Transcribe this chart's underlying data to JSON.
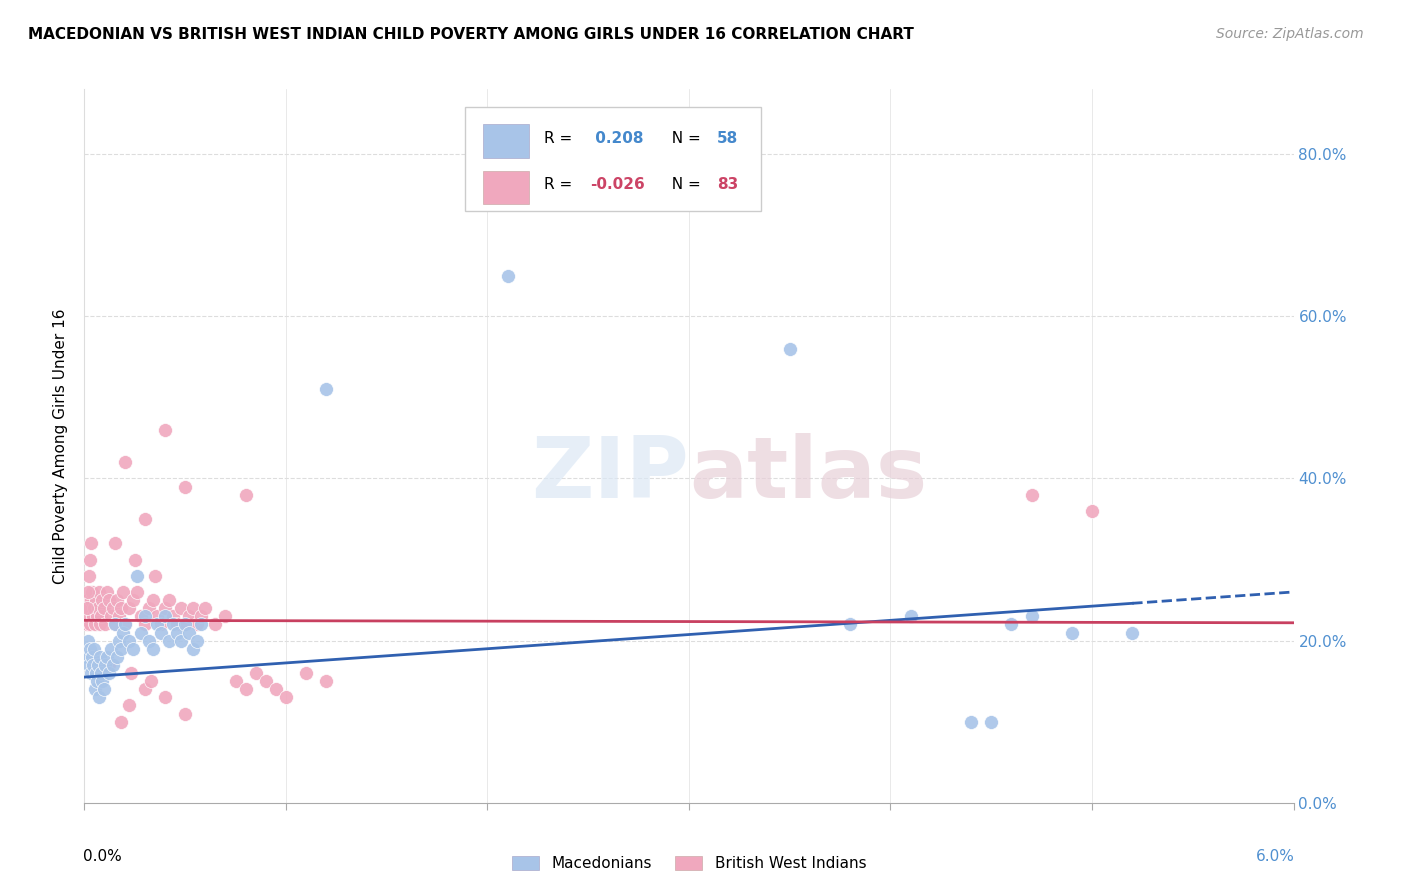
{
  "title": "MACEDONIAN VS BRITISH WEST INDIAN CHILD POVERTY AMONG GIRLS UNDER 16 CORRELATION CHART",
  "source": "Source: ZipAtlas.com",
  "ylabel": "Child Poverty Among Girls Under 16",
  "color_blue": "#a8c4e8",
  "color_pink": "#f0a8be",
  "color_blue_line": "#3060b0",
  "color_pink_line": "#c84060",
  "color_right_axis": "#5090d0",
  "xlim": [
    0.0,
    0.06
  ],
  "ylim": [
    0.0,
    0.88
  ],
  "mac_x": [
    0.00012,
    0.00018,
    0.00022,
    0.00028,
    0.00035,
    0.0004,
    0.00045,
    0.0005,
    0.00055,
    0.0006,
    0.00065,
    0.0007,
    0.00075,
    0.0008,
    0.00085,
    0.0009,
    0.00095,
    0.001,
    0.0011,
    0.0012,
    0.0013,
    0.0014,
    0.0015,
    0.0016,
    0.0017,
    0.0018,
    0.0019,
    0.002,
    0.0022,
    0.0024,
    0.0026,
    0.0028,
    0.003,
    0.0032,
    0.0034,
    0.0036,
    0.0038,
    0.004,
    0.0042,
    0.0044,
    0.0046,
    0.0048,
    0.005,
    0.0052,
    0.0054,
    0.0056,
    0.0058,
    0.021,
    0.035,
    0.012,
    0.045,
    0.049,
    0.052,
    0.047,
    0.038,
    0.041,
    0.044,
    0.046
  ],
  "mac_y": [
    0.18,
    0.2,
    0.17,
    0.19,
    0.16,
    0.18,
    0.17,
    0.19,
    0.14,
    0.16,
    0.15,
    0.17,
    0.13,
    0.18,
    0.16,
    0.15,
    0.14,
    0.17,
    0.18,
    0.16,
    0.19,
    0.17,
    0.22,
    0.18,
    0.2,
    0.19,
    0.21,
    0.22,
    0.2,
    0.19,
    0.28,
    0.21,
    0.23,
    0.2,
    0.19,
    0.22,
    0.21,
    0.23,
    0.2,
    0.22,
    0.21,
    0.2,
    0.22,
    0.21,
    0.19,
    0.2,
    0.22,
    0.65,
    0.56,
    0.51,
    0.1,
    0.21,
    0.21,
    0.23,
    0.22,
    0.23,
    0.1,
    0.22
  ],
  "bwi_x": [
    8e-05,
    0.00012,
    0.00015,
    0.0002,
    0.00025,
    0.0003,
    0.00035,
    0.0004,
    0.00045,
    0.0005,
    0.00055,
    0.0006,
    0.00065,
    0.0007,
    0.00075,
    0.0008,
    0.00085,
    0.0009,
    0.00095,
    0.001,
    0.0011,
    0.0012,
    0.0013,
    0.0014,
    0.0015,
    0.0016,
    0.0017,
    0.0018,
    0.0019,
    0.002,
    0.0022,
    0.0024,
    0.0026,
    0.0028,
    0.003,
    0.0032,
    0.0034,
    0.0036,
    0.0038,
    0.004,
    0.0042,
    0.0044,
    0.0046,
    0.0048,
    0.005,
    0.0052,
    0.0054,
    0.0056,
    0.0058,
    0.006,
    0.0065,
    0.007,
    0.0075,
    0.008,
    0.0085,
    0.009,
    0.0095,
    0.01,
    0.011,
    0.012,
    0.004,
    0.002,
    0.005,
    0.008,
    0.003,
    0.047,
    0.05,
    0.0015,
    0.0025,
    0.0035,
    0.00015,
    0.0002,
    0.00025,
    0.0003,
    0.00035,
    0.0018,
    0.0022,
    0.003,
    0.004,
    0.005,
    0.0012,
    0.0023,
    0.0033
  ],
  "bwi_y": [
    0.24,
    0.22,
    0.25,
    0.23,
    0.24,
    0.22,
    0.25,
    0.26,
    0.23,
    0.24,
    0.22,
    0.25,
    0.23,
    0.24,
    0.26,
    0.22,
    0.23,
    0.25,
    0.24,
    0.22,
    0.26,
    0.25,
    0.23,
    0.24,
    0.22,
    0.25,
    0.23,
    0.24,
    0.26,
    0.22,
    0.24,
    0.25,
    0.26,
    0.23,
    0.22,
    0.24,
    0.25,
    0.23,
    0.22,
    0.24,
    0.25,
    0.23,
    0.22,
    0.24,
    0.22,
    0.23,
    0.24,
    0.22,
    0.23,
    0.24,
    0.22,
    0.23,
    0.15,
    0.14,
    0.16,
    0.15,
    0.14,
    0.13,
    0.16,
    0.15,
    0.46,
    0.42,
    0.39,
    0.38,
    0.35,
    0.38,
    0.36,
    0.32,
    0.3,
    0.28,
    0.24,
    0.26,
    0.28,
    0.3,
    0.32,
    0.1,
    0.12,
    0.14,
    0.13,
    0.11,
    0.17,
    0.16,
    0.15
  ]
}
